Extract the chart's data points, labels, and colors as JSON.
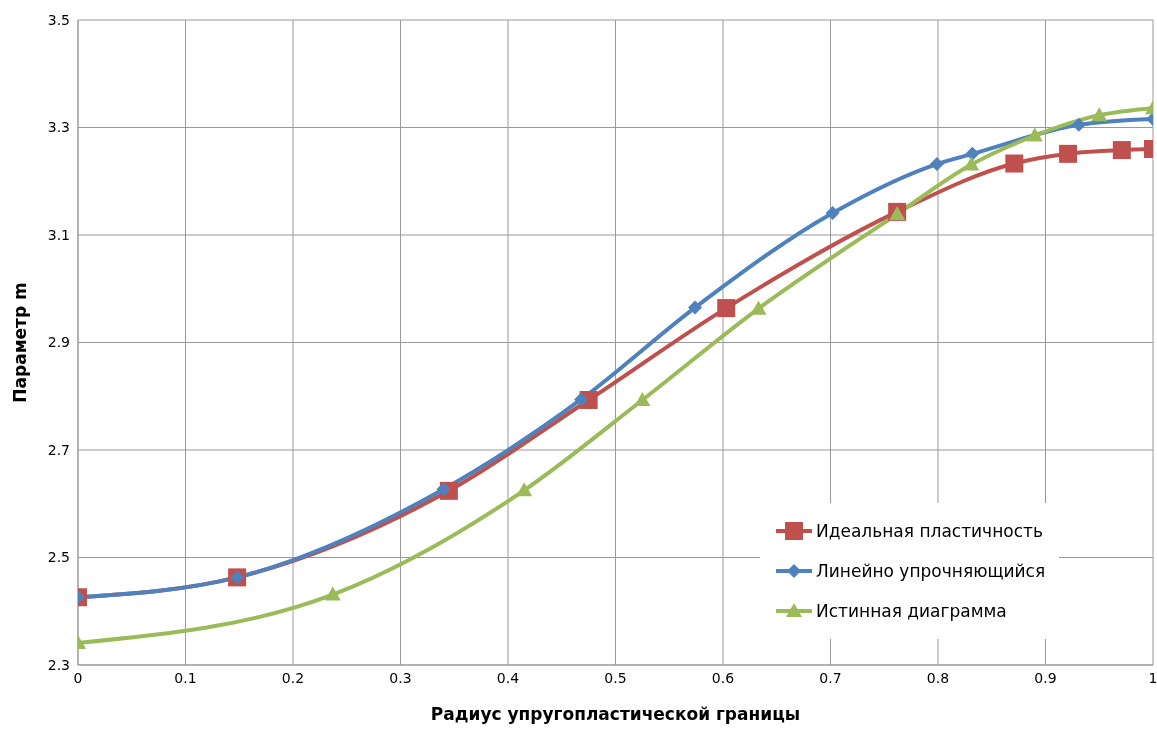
{
  "chart_data": {
    "type": "line",
    "xlabel": "Радиус упругопластической границы",
    "ylabel": "Параметр m",
    "xlim": [
      0,
      1
    ],
    "xticks": [
      0,
      0.1,
      0.2,
      0.3,
      0.4,
      0.5,
      0.6,
      0.7,
      0.8,
      0.9,
      1
    ],
    "ylim": [
      2.3,
      3.5
    ],
    "yticks": [
      {
        "value": 2.3,
        "label": "2.3"
      },
      {
        "value": 2.5,
        "label": "2.5"
      },
      {
        "value": 2.7,
        "label": "2.7"
      },
      {
        "value": 2.9,
        "label": "2.9"
      },
      {
        "value": 3.1,
        "label": "3.1"
      },
      {
        "value": 3.3,
        "label": "3.3"
      },
      {
        "value": 3.5,
        "label": "3.5"
      }
    ],
    "grid": true,
    "legend": "bottom right",
    "line_style": "solid",
    "series": [
      {
        "name": "Идеальная пластичность",
        "color": "#c0504d",
        "marker": "square",
        "x": [
          0,
          0.148,
          0.345,
          0.475,
          0.603,
          0.762,
          0.871,
          0.921,
          0.971,
          1.0
        ],
        "values": [
          2.426,
          2.463,
          2.624,
          2.793,
          2.964,
          3.143,
          3.233,
          3.251,
          3.258,
          3.26
        ]
      },
      {
        "name": "Линейно упрочняющийся",
        "color": "#4f81bd",
        "marker": "diamond",
        "x": [
          0,
          0.148,
          0.34,
          0.468,
          0.574,
          0.702,
          0.799,
          0.832,
          0.931,
          1.0
        ],
        "values": [
          2.426,
          2.463,
          2.627,
          2.794,
          2.965,
          3.141,
          3.232,
          3.251,
          3.305,
          3.316
        ]
      },
      {
        "name": "Истинная диаграмма",
        "color": "#9bbb59",
        "marker": "triangle",
        "x": [
          0,
          0.237,
          0.415,
          0.525,
          0.633,
          0.762,
          0.831,
          0.89,
          0.95,
          1.0
        ],
        "values": [
          2.341,
          2.431,
          2.625,
          2.793,
          2.963,
          3.139,
          3.231,
          3.285,
          3.323,
          3.336
        ]
      }
    ]
  }
}
